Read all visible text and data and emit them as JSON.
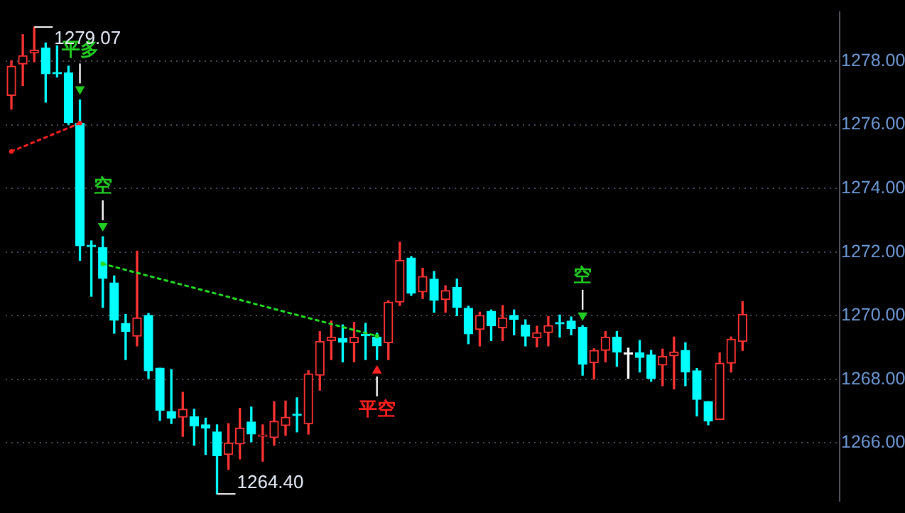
{
  "chart_data": {
    "type": "candlestick",
    "categories": [
      null,
      null,
      null,
      null,
      null,
      null,
      null,
      null,
      null,
      null,
      null,
      null,
      null,
      null,
      null,
      null,
      null,
      null,
      null,
      null,
      null,
      null,
      null,
      null,
      null,
      null,
      null,
      null,
      null,
      null,
      null,
      null,
      null,
      null,
      null,
      null,
      null,
      null,
      null,
      null,
      null,
      null,
      null,
      null,
      null,
      null,
      null,
      null,
      null,
      null,
      null,
      null,
      null,
      null,
      null,
      null,
      null,
      null,
      null,
      null,
      null,
      null,
      null,
      null,
      null
    ],
    "ohlc": [
      [
        1276.92,
        1278.01,
        1276.49,
        1277.84
      ],
      [
        1277.91,
        1278.83,
        1277.23,
        1278.17
      ],
      [
        1278.26,
        1279.07,
        1277.98,
        1278.34
      ],
      [
        1278.41,
        1278.57,
        1276.71,
        1277.6
      ],
      [
        1277.62,
        1278.48,
        1277.5,
        1277.6
      ],
      [
        1277.63,
        1277.84,
        1276.01,
        1276.07
      ],
      [
        1276.04,
        1276.78,
        1271.74,
        1272.2
      ],
      [
        1272.2,
        1272.35,
        1270.61,
        1272.17
      ],
      [
        1272.14,
        1272.48,
        1270.26,
        1271.17
      ],
      [
        1271.03,
        1271.25,
        1269.45,
        1269.86
      ],
      [
        1269.76,
        1270.04,
        1268.62,
        1269.51
      ],
      [
        1269.36,
        1272.03,
        1269.05,
        1269.93
      ],
      [
        1270.01,
        1270.07,
        1268.03,
        1268.27
      ],
      [
        1268.35,
        1268.35,
        1266.71,
        1267.03
      ],
      [
        1266.99,
        1268.31,
        1266.61,
        1266.78
      ],
      [
        1266.81,
        1267.59,
        1266.21,
        1267.06
      ],
      [
        1266.82,
        1267.06,
        1265.93,
        1266.54
      ],
      [
        1266.57,
        1266.78,
        1265.64,
        1266.47
      ],
      [
        1266.35,
        1266.57,
        1264.4,
        1265.6
      ],
      [
        1265.64,
        1266.61,
        1265.17,
        1266.0
      ],
      [
        1265.97,
        1267.09,
        1265.5,
        1266.47
      ],
      [
        1266.66,
        1267.13,
        1266.04,
        1266.28
      ],
      [
        1266.21,
        1266.57,
        1265.43,
        1266.23
      ],
      [
        1266.17,
        1267.3,
        1265.93,
        1266.68
      ],
      [
        1266.55,
        1267.32,
        1266.24,
        1266.81
      ],
      [
        1266.9,
        1267.42,
        1266.35,
        1266.86
      ],
      [
        1266.6,
        1268.27,
        1266.28,
        1268.17
      ],
      [
        1268.13,
        1269.5,
        1267.66,
        1269.19
      ],
      [
        1269.22,
        1269.83,
        1268.62,
        1269.33
      ],
      [
        1269.29,
        1269.71,
        1268.55,
        1269.17
      ],
      [
        1269.15,
        1269.79,
        1268.55,
        1269.32
      ],
      [
        1269.4,
        1269.76,
        1268.62,
        1269.37
      ],
      [
        1269.33,
        1269.45,
        1268.62,
        1269.05
      ],
      [
        1269.15,
        1270.47,
        1268.62,
        1270.43
      ],
      [
        1270.43,
        1272.31,
        1270.32,
        1271.74
      ],
      [
        1271.81,
        1271.86,
        1270.64,
        1270.71
      ],
      [
        1270.75,
        1271.49,
        1270.54,
        1271.23
      ],
      [
        1271.15,
        1271.39,
        1270.11,
        1270.49
      ],
      [
        1270.51,
        1270.94,
        1270.11,
        1270.79
      ],
      [
        1270.89,
        1271.15,
        1270.0,
        1270.26
      ],
      [
        1270.23,
        1270.3,
        1269.12,
        1269.43
      ],
      [
        1269.57,
        1270.11,
        1269.05,
        1270.01
      ],
      [
        1270.14,
        1270.18,
        1269.22,
        1269.68
      ],
      [
        1269.62,
        1270.32,
        1269.22,
        1269.93
      ],
      [
        1270.01,
        1270.18,
        1269.4,
        1269.89
      ],
      [
        1269.71,
        1269.87,
        1269.05,
        1269.36
      ],
      [
        1269.3,
        1269.67,
        1269.02,
        1269.47
      ],
      [
        1269.47,
        1269.97,
        1269.05,
        1269.69
      ],
      [
        1269.77,
        1270.02,
        1269.33,
        1269.74
      ],
      [
        1269.83,
        1269.96,
        1269.4,
        1269.59
      ],
      [
        1269.64,
        1269.69,
        1268.13,
        1268.48
      ],
      [
        1268.52,
        1268.96,
        1268.01,
        1268.91
      ],
      [
        1268.91,
        1269.5,
        1268.55,
        1269.33
      ],
      [
        1269.33,
        1269.5,
        1268.41,
        1268.86
      ],
      [
        1268.79,
        1268.98,
        1268.03,
        1268.79
      ],
      [
        1268.83,
        1269.22,
        1268.23,
        1268.69
      ],
      [
        1268.77,
        1268.91,
        1267.94,
        1268.03
      ],
      [
        1268.45,
        1268.95,
        1267.8,
        1268.72
      ],
      [
        1268.74,
        1269.33,
        1267.7,
        1268.86
      ],
      [
        1268.91,
        1269.15,
        1267.8,
        1268.23
      ],
      [
        1268.27,
        1268.34,
        1266.85,
        1267.37
      ],
      [
        1267.3,
        1267.3,
        1266.57,
        1266.69
      ],
      [
        1266.74,
        1268.83,
        1266.74,
        1268.51
      ],
      [
        1268.51,
        1269.33,
        1268.23,
        1269.26
      ],
      [
        1269.19,
        1270.44,
        1268.91,
        1270.04
      ]
    ],
    "colors": [
      "#ff3333",
      "#ff3333",
      "#ff3333",
      "#00ffff",
      "#00ffff",
      "#00ffff",
      "#00ffff",
      "#00ffff",
      "#00ffff",
      "#00ffff",
      "#00ffff",
      "#ff3333",
      "#00ffff",
      "#00ffff",
      "#00ffff",
      "#ff3333",
      "#00ffff",
      "#00ffff",
      "#00ffff",
      "#ff3333",
      "#ff3333",
      "#00ffff",
      "#ff3333",
      "#ff3333",
      "#ff3333",
      "#00ffff",
      "#ff3333",
      "#ff3333",
      "#ff3333",
      "#00ffff",
      "#ff3333",
      "#00ffff",
      "#00ffff",
      "#ff3333",
      "#ff3333",
      "#00ffff",
      "#ff3333",
      "#00ffff",
      "#ff3333",
      "#00ffff",
      "#00ffff",
      "#ff3333",
      "#00ffff",
      "#ff3333",
      "#00ffff",
      "#00ffff",
      "#ff3333",
      "#ff3333",
      "#00ffff",
      "#00ffff",
      "#00ffff",
      "#ff3333",
      "#ff3333",
      "#00ffff",
      "#ffffff",
      "#00ffff",
      "#00ffff",
      "#ff3333",
      "#ff3333",
      "#00ffff",
      "#00ffff",
      "#00ffff",
      "#ff3333",
      "#ff3333",
      "#ff3333"
    ],
    "series": [
      {
        "type": "line",
        "color": "#ff2020",
        "line_style": "dotted",
        "marker": "circle",
        "values": [
          1275.16,
          null,
          null,
          null,
          null,
          null,
          1276.05,
          null,
          null,
          null,
          null,
          null,
          null,
          null,
          null,
          null,
          null,
          null,
          null,
          null,
          null,
          null,
          null,
          null,
          null,
          null,
          null,
          null,
          null,
          null,
          null,
          null,
          null,
          null,
          null,
          null,
          null,
          null,
          null,
          null,
          null,
          null,
          null,
          null,
          null,
          null,
          null,
          null,
          null,
          null,
          null,
          null,
          null,
          null,
          null,
          null,
          null,
          null,
          null,
          null,
          null,
          null,
          null,
          null,
          null
        ]
      },
      {
        "type": "line",
        "color": "#22dd22",
        "line_style": "dotted",
        "marker": "circle",
        "values": [
          null,
          null,
          null,
          null,
          null,
          null,
          null,
          null,
          1271.63,
          null,
          null,
          null,
          null,
          null,
          null,
          null,
          null,
          null,
          null,
          null,
          null,
          null,
          null,
          null,
          null,
          null,
          null,
          null,
          null,
          null,
          null,
          null,
          1269.36,
          null,
          null,
          null,
          null,
          null,
          null,
          null,
          null,
          null,
          null,
          null,
          null,
          null,
          null,
          null,
          null,
          null,
          null,
          null,
          null,
          null,
          null,
          null,
          null,
          null,
          null,
          null,
          null,
          null,
          null,
          null,
          null
        ]
      },
      {
        "type": "scatter",
        "name": "平多",
        "color": "#22cc22",
        "values": [
          null,
          null,
          null,
          null,
          null,
          null,
          1277.12,
          null,
          null,
          null,
          null,
          null,
          null,
          null,
          null,
          null,
          null,
          null,
          null,
          null,
          null,
          null,
          null,
          null,
          null,
          null,
          null,
          null,
          null,
          null,
          null,
          null,
          null,
          null,
          null,
          null,
          null,
          null,
          null,
          null,
          null,
          null,
          null,
          null,
          null,
          null,
          null,
          null,
          null,
          null,
          null,
          null,
          null,
          null,
          null,
          null,
          null,
          null,
          null,
          null,
          null,
          null,
          null,
          null,
          null
        ]
      },
      {
        "type": "scatter",
        "name": "空",
        "color": "#22cc22",
        "values": [
          null,
          null,
          null,
          null,
          null,
          null,
          null,
          null,
          1272.82,
          null,
          null,
          null,
          null,
          null,
          null,
          null,
          null,
          null,
          null,
          null,
          null,
          null,
          null,
          null,
          null,
          null,
          null,
          null,
          null,
          null,
          null,
          null,
          null,
          null,
          null,
          null,
          null,
          null,
          null,
          null,
          null,
          null,
          null,
          null,
          null,
          null,
          null,
          null,
          null,
          null,
          1270.01,
          null,
          null,
          null,
          null,
          null,
          null,
          null,
          null,
          null,
          null,
          null,
          null,
          null,
          null
        ]
      },
      {
        "type": "scatter",
        "name": "平空",
        "color": "#ff2020",
        "values": [
          null,
          null,
          null,
          null,
          null,
          null,
          null,
          null,
          null,
          null,
          null,
          null,
          null,
          null,
          null,
          null,
          null,
          null,
          null,
          null,
          null,
          null,
          null,
          null,
          null,
          null,
          null,
          null,
          null,
          null,
          null,
          null,
          1268.27,
          null,
          null,
          null,
          null,
          null,
          null,
          null,
          null,
          null,
          null,
          null,
          null,
          null,
          null,
          null,
          null,
          null,
          null,
          null,
          null,
          null,
          null,
          null,
          null,
          null,
          null,
          null,
          null,
          null,
          null,
          null,
          null
        ]
      }
    ],
    "annotations": [
      "1279.07",
      "1264.40"
    ],
    "ylim": [
      1264.18,
      1279.54
    ],
    "yticks": [
      {
        "value": 1266,
        "label": "1266.00"
      },
      {
        "value": 1268,
        "label": "1268.00"
      },
      {
        "value": 1270,
        "label": "1270.00"
      },
      {
        "value": 1272,
        "label": "1272.00"
      },
      {
        "value": 1274,
        "label": "1274.00"
      },
      {
        "value": 1276,
        "label": "1276.00"
      },
      {
        "value": 1278,
        "label": "1278.00"
      }
    ],
    "grid": "y",
    "tick_labels": "y"
  }
}
